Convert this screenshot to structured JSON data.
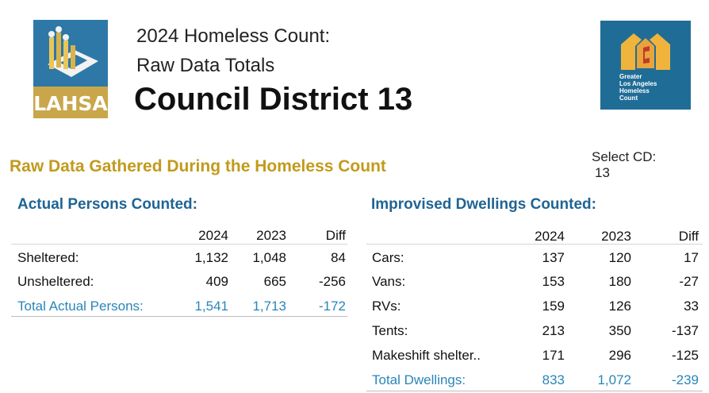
{
  "header": {
    "line1": "2024 Homeless Count:",
    "line2": "Raw Data Totals",
    "title": "Council District 13"
  },
  "logos": {
    "lahsa": "LAHSA",
    "glahc": [
      "Greater",
      "Los Angeles",
      "Homeless",
      "Count"
    ]
  },
  "subtitle": "Raw Data Gathered During the Homeless Count",
  "select_cd": {
    "label": "Select CD:",
    "value": "13"
  },
  "persons": {
    "heading": "Actual Persons Counted:",
    "columns": [
      "2024",
      "2023",
      "Diff"
    ],
    "rows": [
      {
        "label": "Sheltered:",
        "v2024": "1,132",
        "v2023": "1,048",
        "diff": "84"
      },
      {
        "label": "Unsheltered:",
        "v2024": "409",
        "v2023": "665",
        "diff": "-256"
      }
    ],
    "total": {
      "label": "Total Actual Persons:",
      "v2024": "1,541",
      "v2023": "1,713",
      "diff": "-172"
    }
  },
  "dwellings": {
    "heading": "Improvised Dwellings Counted:",
    "columns": [
      "2024",
      "2023",
      "Diff"
    ],
    "rows": [
      {
        "label": "Cars:",
        "v2024": "137",
        "v2023": "120",
        "diff": "17"
      },
      {
        "label": "Vans:",
        "v2024": "153",
        "v2023": "180",
        "diff": "-27"
      },
      {
        "label": "RVs:",
        "v2024": "159",
        "v2023": "126",
        "diff": "33"
      },
      {
        "label": "Tents:",
        "v2024": "213",
        "v2023": "350",
        "diff": "-137"
      },
      {
        "label": "Makeshift shelter..",
        "v2024": "171",
        "v2023": "296",
        "diff": "-125"
      }
    ],
    "total": {
      "label": "Total Dwellings:",
      "v2024": "833",
      "v2023": "1,072",
      "diff": "-239"
    }
  },
  "colors": {
    "accent_gold": "#c29a1c",
    "heading_blue": "#1f6494",
    "total_blue": "#2a86b8",
    "lahsa_blue": "#2e78a8",
    "lahsa_gold": "#c9a64a",
    "glahc_blue": "#1f6d97"
  }
}
